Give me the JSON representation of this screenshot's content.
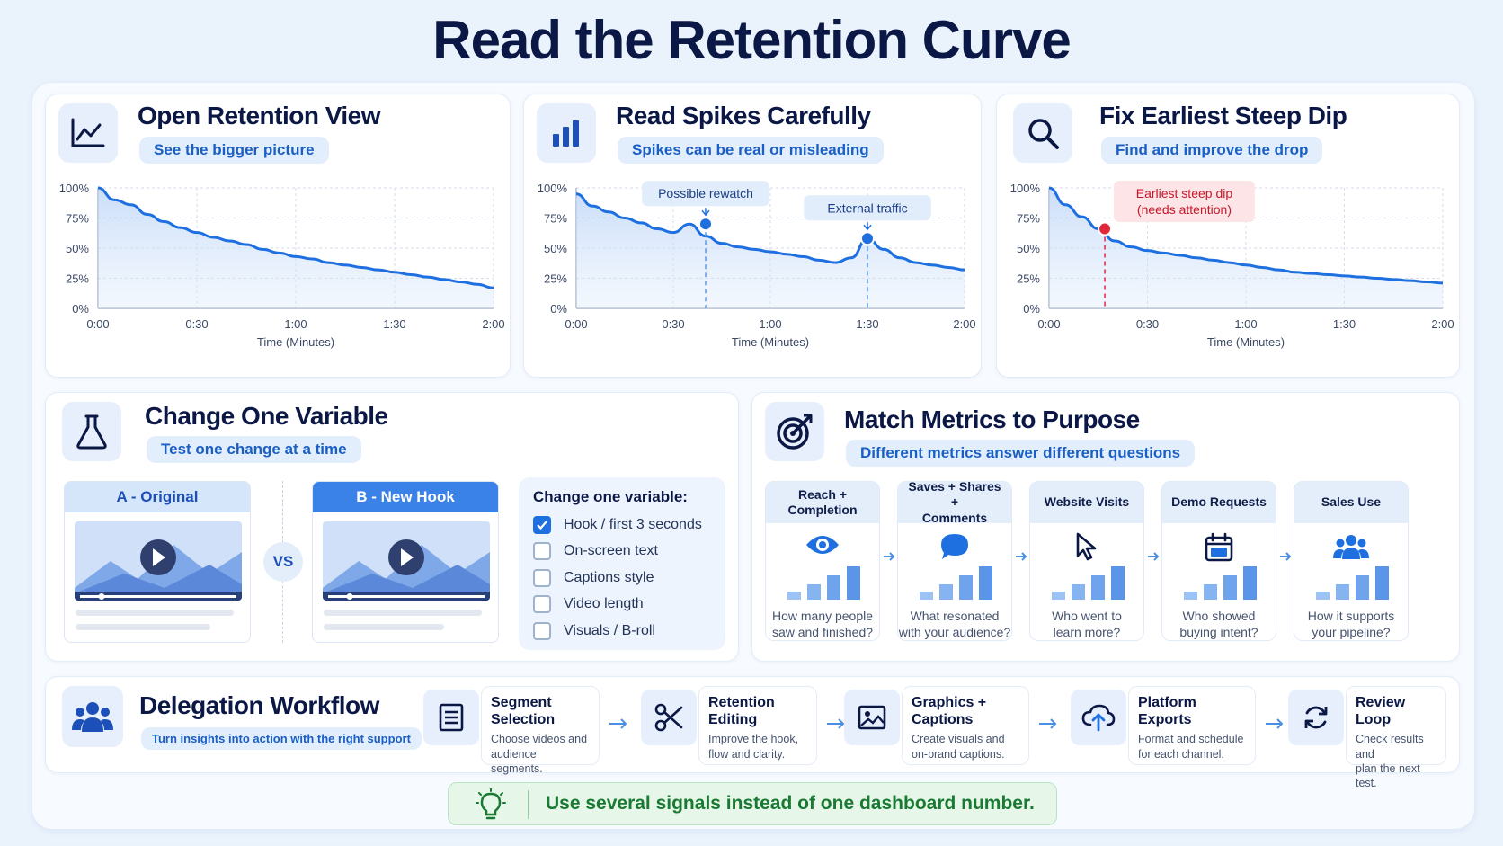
{
  "title": "Read the Retention Curve",
  "colors": {
    "accent": "#1e6fe0",
    "navy": "#0b1845",
    "alert": "#e0283a",
    "tip_green": "#1a7a33"
  },
  "cards": {
    "open": {
      "title": "Open Retention View",
      "subtitle": "See the bigger picture",
      "icon": "line-chart-icon"
    },
    "spikes": {
      "title": "Read Spikes Carefully",
      "subtitle": "Spikes can be real or misleading",
      "icon": "bar-chart-icon"
    },
    "dip": {
      "title": "Fix Earliest Steep Dip",
      "subtitle": "Find and improve the drop",
      "icon": "magnifier-icon"
    }
  },
  "chart_data": [
    {
      "type": "area",
      "x": [
        0,
        5,
        10,
        15,
        20,
        25,
        30,
        35,
        40,
        45,
        50,
        55,
        60,
        65,
        70,
        75,
        80,
        85,
        90,
        95,
        100,
        105,
        110,
        115,
        120
      ],
      "x_ticks": [
        "0:00",
        "0:30",
        "1:00",
        "1:30",
        "2:00"
      ],
      "y_ticks": [
        "0%",
        "25%",
        "50%",
        "75%",
        "100%"
      ],
      "xlabel": "Time (Minutes)",
      "xlim": [
        0,
        120
      ],
      "ylim": [
        0,
        100
      ],
      "series": [
        {
          "values": [
            100,
            90,
            86,
            78,
            72,
            67,
            63,
            59,
            56,
            53,
            49,
            46,
            43,
            41,
            38,
            36,
            34,
            32,
            30,
            28,
            26,
            24,
            22,
            20,
            17
          ]
        }
      ],
      "annotations": []
    },
    {
      "type": "area",
      "x": [
        0,
        5,
        10,
        15,
        20,
        25,
        30,
        35,
        40,
        45,
        50,
        55,
        60,
        65,
        70,
        75,
        80,
        85,
        90,
        95,
        100,
        105,
        110,
        115,
        120
      ],
      "x_ticks": [
        "0:00",
        "0:30",
        "1:00",
        "1:30",
        "2:00"
      ],
      "y_ticks": [
        "0%",
        "25%",
        "50%",
        "75%",
        "100%"
      ],
      "xlabel": "Time (Minutes)",
      "xlim": [
        0,
        120
      ],
      "ylim": [
        0,
        100
      ],
      "series": [
        {
          "values": [
            95,
            85,
            80,
            75,
            71,
            66,
            63,
            70,
            60,
            54,
            51,
            49,
            47,
            45,
            43,
            40,
            38,
            42,
            58,
            49,
            42,
            38,
            36,
            34,
            32
          ]
        }
      ],
      "annotations": [
        {
          "x": 40,
          "y": 70,
          "label": "Possible rewatch"
        },
        {
          "x": 90,
          "y": 58,
          "label": "External traffic"
        }
      ]
    },
    {
      "type": "area",
      "x": [
        0,
        5,
        10,
        15,
        20,
        25,
        30,
        35,
        40,
        45,
        50,
        55,
        60,
        65,
        70,
        75,
        80,
        85,
        90,
        95,
        100,
        105,
        110,
        115,
        120
      ],
      "x_ticks": [
        "0:00",
        "0:30",
        "1:00",
        "1:30",
        "2:00"
      ],
      "y_ticks": [
        "0%",
        "25%",
        "50%",
        "75%",
        "100%"
      ],
      "xlabel": "Time (Minutes)",
      "xlim": [
        0,
        120
      ],
      "ylim": [
        0,
        100
      ],
      "series": [
        {
          "values": [
            100,
            86,
            76,
            66,
            56,
            51,
            48,
            46,
            44,
            42,
            40,
            38,
            36,
            34,
            32,
            30,
            29,
            28,
            27,
            26,
            25,
            24,
            23,
            22,
            21
          ]
        }
      ],
      "annotations": [
        {
          "x": 17,
          "y": 66,
          "label": "Earliest steep dip\n(needs attention)",
          "color": "red"
        }
      ]
    }
  ],
  "variable": {
    "title": "Change One Variable",
    "subtitle": "Test one change at a time",
    "icon": "flask-icon",
    "a_label": "A - Original",
    "b_label": "B - New Hook",
    "vs": "VS",
    "checklist_title": "Change one variable:",
    "items": [
      {
        "label": "Hook / first 3 seconds",
        "checked": true
      },
      {
        "label": "On-screen text",
        "checked": false
      },
      {
        "label": "Captions style",
        "checked": false
      },
      {
        "label": "Video length",
        "checked": false
      },
      {
        "label": "Visuals / B-roll",
        "checked": false
      }
    ]
  },
  "metrics": {
    "title": "Match Metrics to Purpose",
    "subtitle": "Different metrics answer different questions",
    "icon": "target-icon",
    "items": [
      {
        "head": "Reach + Completion",
        "question": "How many people\nsaw and finished?",
        "icon": "eye-icon"
      },
      {
        "head": "Saves + Shares +\nComments",
        "question": "What resonated\nwith your audience?",
        "icon": "chat-bubble-icon"
      },
      {
        "head": "Website Visits",
        "question": "Who went to\nlearn more?",
        "icon": "cursor-icon"
      },
      {
        "head": "Demo Requests",
        "question": "Who showed\nbuying intent?",
        "icon": "calendar-icon"
      },
      {
        "head": "Sales Use",
        "question": "How it supports\nyour pipeline?",
        "icon": "people-icon"
      }
    ]
  },
  "delegation": {
    "title": "Delegation Workflow",
    "subtitle": "Turn insights into action with the right support",
    "icon": "team-icon",
    "steps": [
      {
        "title": "Segment\nSelection",
        "desc": "Choose videos and\naudience segments.",
        "icon": "list-icon"
      },
      {
        "title": "Retention\nEditing",
        "desc": "Improve the hook,\nflow and clarity.",
        "icon": "scissors-icon"
      },
      {
        "title": "Graphics +\nCaptions",
        "desc": "Create visuals and\non-brand captions.",
        "icon": "image-icon"
      },
      {
        "title": "Platform\nExports",
        "desc": "Format and schedule\nfor each channel.",
        "icon": "cloud-upload-icon"
      },
      {
        "title": "Review Loop",
        "desc": "Check results and\nplan the next test.",
        "icon": "refresh-icon"
      }
    ]
  },
  "tip": {
    "text": "Use several signals instead of one dashboard number.",
    "icon": "lightbulb-icon"
  }
}
